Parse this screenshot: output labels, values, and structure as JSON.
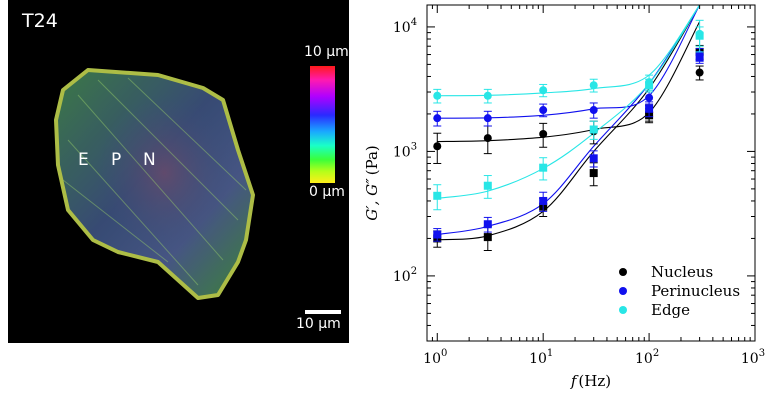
{
  "image_panel": {
    "title": "T24",
    "region_labels": [
      "E",
      "P",
      "N"
    ],
    "colorbar": {
      "max_label": "10 μm",
      "min_label": "0 μm"
    },
    "scalebar_label": "10 μm"
  },
  "chart_data": {
    "type": "scatter",
    "xlabel_var": "f",
    "xlabel_unit": "(Hz)",
    "ylabel_prefix": "G′, G″",
    "ylabel_unit": "(Pa)",
    "xscale": "log",
    "yscale": "log",
    "xlim": [
      0.8,
      1000
    ],
    "ylim": [
      30,
      15000
    ],
    "x_ticks": [
      {
        "value": 1,
        "base": "10",
        "exp": "0"
      },
      {
        "value": 10,
        "base": "10",
        "exp": "1"
      },
      {
        "value": 100,
        "base": "10",
        "exp": "2"
      },
      {
        "value": 1000,
        "base": "10",
        "exp": "3"
      }
    ],
    "y_ticks": [
      {
        "value": 100,
        "base": "10",
        "exp": "2"
      },
      {
        "value": 1000,
        "base": "10",
        "exp": "3"
      },
      {
        "value": 10000,
        "base": "10",
        "exp": "4"
      }
    ],
    "legend_position": "bottom-right",
    "series": [
      {
        "name": "Nucleus",
        "color": "#000000",
        "x": [
          1,
          3,
          10,
          30,
          100,
          300
        ],
        "storage": [
          200,
          205,
          360,
          670,
          1950,
          6300
        ],
        "storage_err": [
          30,
          45,
          60,
          140,
          250,
          800
        ],
        "loss": [
          1100,
          1280,
          1380,
          1450,
          2050,
          4300
        ],
        "loss_err": [
          300,
          320,
          300,
          300,
          300,
          550
        ],
        "fit_storage": [
          195,
          210,
          330,
          1000,
          3200,
          15000
        ],
        "fit_loss": [
          1200,
          1220,
          1300,
          1500,
          2050,
          11000
        ]
      },
      {
        "name": "Perinucleus",
        "color": "#1010ee",
        "x": [
          1,
          3,
          10,
          30,
          100,
          300
        ],
        "storage": [
          215,
          260,
          400,
          880,
          2200,
          5700
        ],
        "storage_err": [
          25,
          35,
          70,
          130,
          300,
          600
        ],
        "loss": [
          1850,
          1850,
          2150,
          2150,
          2700,
          6000
        ],
        "loss_err": [
          250,
          250,
          250,
          300,
          300,
          700
        ],
        "fit_storage": [
          215,
          250,
          380,
          1100,
          3500,
          15000
        ],
        "fit_loss": [
          1850,
          1860,
          1950,
          2200,
          2800,
          15000
        ]
      },
      {
        "name": "Edge",
        "color": "#28e6e6",
        "x": [
          1,
          3,
          10,
          30,
          100,
          300
        ],
        "storage": [
          440,
          530,
          740,
          1500,
          3400,
          8500
        ],
        "storage_err": [
          100,
          110,
          150,
          250,
          400,
          1500
        ],
        "loss": [
          2800,
          2800,
          3100,
          3400,
          3600,
          8800
        ],
        "loss_err": [
          350,
          350,
          350,
          400,
          500,
          2500
        ],
        "fit_storage": [
          420,
          480,
          730,
          1400,
          3500,
          15000
        ],
        "fit_loss": [
          2800,
          2820,
          2950,
          3200,
          4100,
          15000
        ]
      }
    ]
  }
}
